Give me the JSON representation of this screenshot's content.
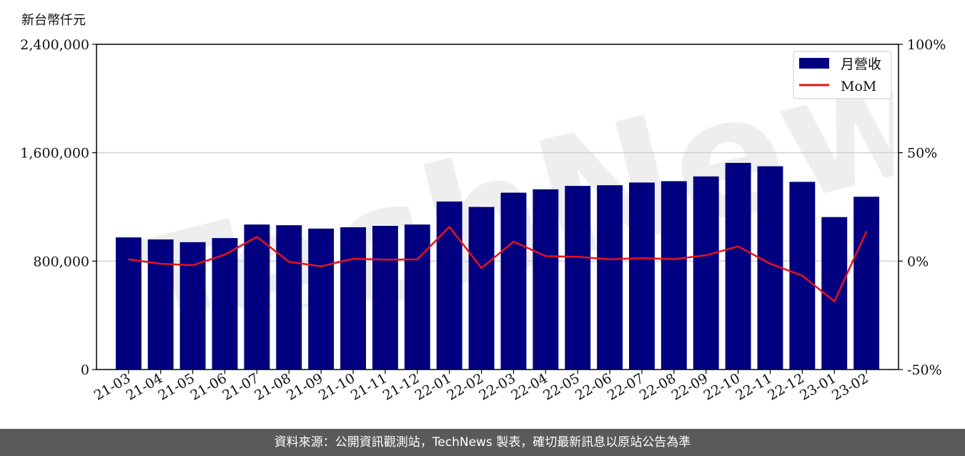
{
  "unit_label": "新台幣仟元",
  "footer_text": "資料來源：公開資訊觀測站，TechNews 製表，確切最新訊息以原站公告為準",
  "watermark_text": "TechNews",
  "colors": {
    "bar": "#000080",
    "line": "#e8121a",
    "grid": "#d0d0d0",
    "footer_bg": "#5a5a5a"
  },
  "chart_data": {
    "type": "bar",
    "categories": [
      "21-03",
      "21-04",
      "21-05",
      "21-06",
      "21-07",
      "21-08",
      "21-09",
      "21-10",
      "21-11",
      "21-12",
      "22-01",
      "22-02",
      "22-03",
      "22-04",
      "22-05",
      "22-06",
      "22-07",
      "22-08",
      "22-09",
      "22-10",
      "22-11",
      "22-12",
      "23-01",
      "23-02"
    ],
    "series": [
      {
        "name": "月營收",
        "type": "bar",
        "axis": "left",
        "values": [
          975000,
          960000,
          940000,
          970000,
          1070000,
          1065000,
          1040000,
          1050000,
          1060000,
          1070000,
          1240000,
          1200000,
          1305000,
          1330000,
          1355000,
          1360000,
          1380000,
          1390000,
          1425000,
          1525000,
          1500000,
          1385000,
          1125000,
          1275000
        ]
      },
      {
        "name": "MoM",
        "type": "line",
        "axis": "right",
        "values": [
          0.8,
          -1.2,
          -1.9,
          3.0,
          11.2,
          -0.3,
          -2.4,
          1.1,
          0.7,
          0.8,
          15.8,
          -3.2,
          9.0,
          2.3,
          2.0,
          0.8,
          1.4,
          0.9,
          2.7,
          6.8,
          -1.2,
          -6.7,
          -18.6,
          13.7
        ]
      }
    ],
    "left_axis": {
      "ylim": [
        0,
        2400000
      ],
      "ticks": [
        "0",
        "800,000",
        "1,600,000",
        "2,400,000"
      ],
      "tick_values": [
        0,
        800000,
        1600000,
        2400000
      ]
    },
    "right_axis": {
      "ylim": [
        -50,
        100
      ],
      "ticks": [
        "-50%",
        "0%",
        "50%",
        "100%"
      ],
      "tick_values": [
        -50,
        0,
        50,
        100
      ]
    },
    "grid": "horizontal",
    "legend_placement": "top-right"
  }
}
